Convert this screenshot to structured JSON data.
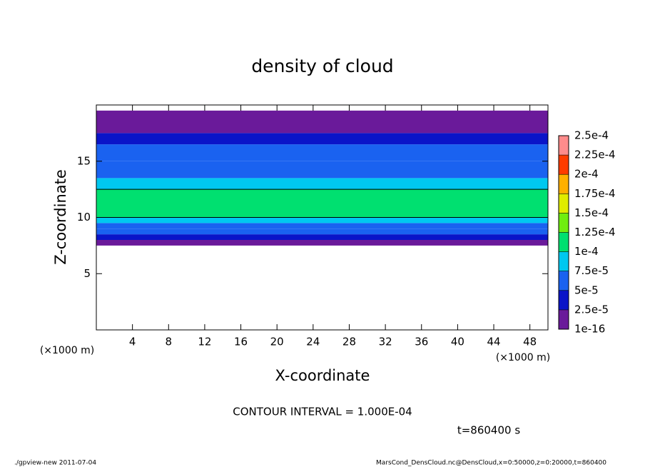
{
  "chart_data": {
    "type": "contour",
    "title": "density of cloud",
    "x_label": "X-coordinate",
    "y_label": "Z-coordinate",
    "x_unit": "(×1000 m)",
    "y_unit": "(×1000 m)",
    "xlim": [
      0,
      50
    ],
    "xticks": [
      4,
      8,
      12,
      16,
      20,
      24,
      28,
      32,
      36,
      40,
      44,
      48
    ],
    "ylim": [
      0,
      20
    ],
    "yticks": [
      5,
      10,
      15
    ],
    "profile": {
      "z_edges": [
        7.5,
        8,
        8.5,
        9,
        9.5,
        10,
        12.5,
        13.5,
        15,
        16.5,
        17.5,
        19.5
      ],
      "values": [
        1e-05,
        3e-05,
        5.5e-05,
        7e-05,
        8.5e-05,
        0.000105,
        8e-05,
        6e-05,
        5.5e-05,
        3e-05,
        1e-05
      ]
    },
    "colorbar": {
      "ticks": [
        {
          "value": 1e-16,
          "label": "1e-16"
        },
        {
          "value": 2.5e-05,
          "label": "2.5e-5"
        },
        {
          "value": 5e-05,
          "label": "5e-5"
        },
        {
          "value": 7.5e-05,
          "label": "7.5e-5"
        },
        {
          "value": 0.0001,
          "label": "1e-4"
        },
        {
          "value": 0.000125,
          "label": "1.25e-4"
        },
        {
          "value": 0.00015,
          "label": "1.5e-4"
        },
        {
          "value": 0.000175,
          "label": "1.75e-4"
        },
        {
          "value": 0.0002,
          "label": "2e-4"
        },
        {
          "value": 0.000225,
          "label": "2.25e-4"
        },
        {
          "value": 0.00025,
          "label": "2.5e-4"
        }
      ],
      "colors": [
        "#6a1a9a",
        "#0a14c8",
        "#1a62f0",
        "#00c8f0",
        "#00e070",
        "#70ee10",
        "#e0ec00",
        "#ffb000",
        "#ff3c00",
        "#ff8c8c"
      ]
    },
    "contour_interval": 0.0001,
    "contour_text": "CONTOUR INTERVAL = 1.000E-04",
    "time_text": "t=860400 s",
    "footer_left": "./gpview-new  2011-07-04",
    "footer_right": "MarsCond_DensCloud.nc@DensCloud,x=0:50000,z=0:20000,t=860400"
  }
}
